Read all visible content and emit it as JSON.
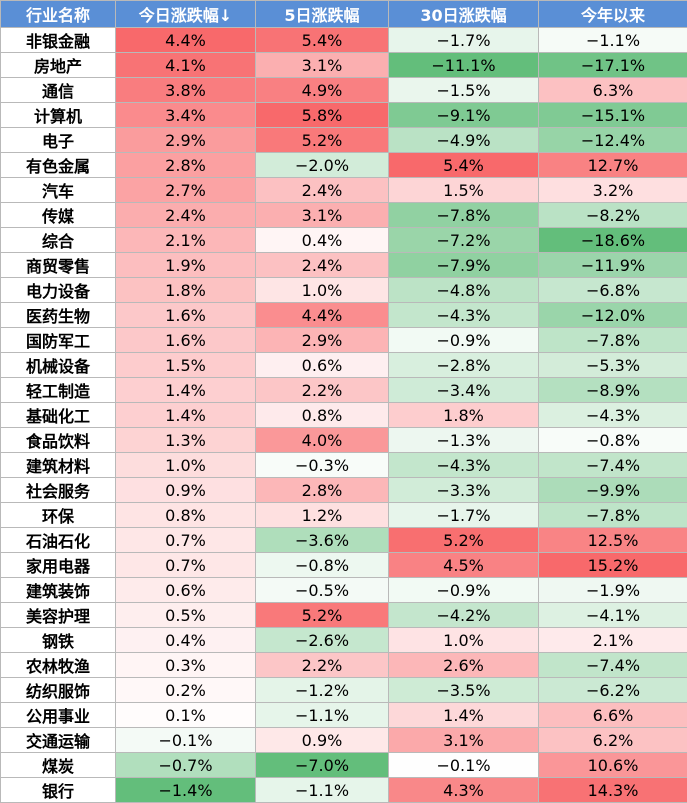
{
  "table": {
    "headers": [
      "行业名称",
      "今日涨跌幅↓",
      "5日涨跌幅",
      "30日涨跌幅",
      "今年以来"
    ],
    "rows": [
      {
        "name": "非银金融",
        "values": [
          "4.4%",
          "5.4%",
          "−1.7%",
          "−1.1%"
        ]
      },
      {
        "name": "房地产",
        "values": [
          "4.1%",
          "3.1%",
          "−11.1%",
          "−17.1%"
        ]
      },
      {
        "name": "通信",
        "values": [
          "3.8%",
          "4.9%",
          "−1.5%",
          "6.3%"
        ]
      },
      {
        "name": "计算机",
        "values": [
          "3.4%",
          "5.8%",
          "−9.1%",
          "−15.1%"
        ]
      },
      {
        "name": "电子",
        "values": [
          "2.9%",
          "5.2%",
          "−4.9%",
          "−12.4%"
        ]
      },
      {
        "name": "有色金属",
        "values": [
          "2.8%",
          "−2.0%",
          "5.4%",
          "12.7%"
        ]
      },
      {
        "name": "汽车",
        "values": [
          "2.7%",
          "2.4%",
          "1.5%",
          "3.2%"
        ]
      },
      {
        "name": "传媒",
        "values": [
          "2.4%",
          "3.1%",
          "−7.8%",
          "−8.2%"
        ]
      },
      {
        "name": "综合",
        "values": [
          "2.1%",
          "0.4%",
          "−7.2%",
          "−18.6%"
        ]
      },
      {
        "name": "商贸零售",
        "values": [
          "1.9%",
          "2.4%",
          "−7.9%",
          "−11.9%"
        ]
      },
      {
        "name": "电力设备",
        "values": [
          "1.8%",
          "1.0%",
          "−4.8%",
          "−6.8%"
        ]
      },
      {
        "name": "医药生物",
        "values": [
          "1.6%",
          "4.4%",
          "−4.3%",
          "−12.0%"
        ]
      },
      {
        "name": "国防军工",
        "values": [
          "1.6%",
          "2.9%",
          "−0.9%",
          "−7.8%"
        ]
      },
      {
        "name": "机械设备",
        "values": [
          "1.5%",
          "0.6%",
          "−2.8%",
          "−5.3%"
        ]
      },
      {
        "name": "轻工制造",
        "values": [
          "1.4%",
          "2.2%",
          "−3.4%",
          "−8.9%"
        ]
      },
      {
        "name": "基础化工",
        "values": [
          "1.4%",
          "0.8%",
          "1.8%",
          "−4.3%"
        ]
      },
      {
        "name": "食品饮料",
        "values": [
          "1.3%",
          "4.0%",
          "−1.3%",
          "−0.8%"
        ]
      },
      {
        "name": "建筑材料",
        "values": [
          "1.0%",
          "−0.3%",
          "−4.3%",
          "−7.4%"
        ]
      },
      {
        "name": "社会服务",
        "values": [
          "0.9%",
          "2.8%",
          "−3.3%",
          "−9.9%"
        ]
      },
      {
        "name": "环保",
        "values": [
          "0.8%",
          "1.2%",
          "−1.7%",
          "−7.8%"
        ]
      },
      {
        "name": "石油石化",
        "values": [
          "0.7%",
          "−3.6%",
          "5.2%",
          "12.5%"
        ]
      },
      {
        "name": "家用电器",
        "values": [
          "0.7%",
          "−0.8%",
          "4.5%",
          "15.2%"
        ]
      },
      {
        "name": "建筑装饰",
        "values": [
          "0.6%",
          "−0.5%",
          "−0.9%",
          "−1.9%"
        ]
      },
      {
        "name": "美容护理",
        "values": [
          "0.5%",
          "5.2%",
          "−4.2%",
          "−4.1%"
        ]
      },
      {
        "name": "钢铁",
        "values": [
          "0.4%",
          "−2.6%",
          "1.0%",
          "2.1%"
        ]
      },
      {
        "name": "农林牧渔",
        "values": [
          "0.3%",
          "2.2%",
          "2.6%",
          "−7.4%"
        ]
      },
      {
        "name": "纺织服饰",
        "values": [
          "0.2%",
          "−1.2%",
          "−3.5%",
          "−6.2%"
        ]
      },
      {
        "name": "公用事业",
        "values": [
          "0.1%",
          "−1.1%",
          "1.4%",
          "6.6%"
        ]
      },
      {
        "name": "交通运输",
        "values": [
          "−0.1%",
          "0.9%",
          "3.1%",
          "6.2%"
        ]
      },
      {
        "name": "煤炭",
        "values": [
          "−0.7%",
          "−7.0%",
          "−0.1%",
          "10.6%"
        ]
      },
      {
        "name": "银行",
        "values": [
          "−1.4%",
          "−1.1%",
          "4.3%",
          "14.3%"
        ]
      }
    ]
  },
  "colors": {
    "header_bg": "#5a8fd6",
    "header_text": "#ffffff",
    "positive_max": "#f8696b",
    "negative_max": "#63be7b",
    "neutral": "#ffffff",
    "border": "#b9b9b9"
  }
}
